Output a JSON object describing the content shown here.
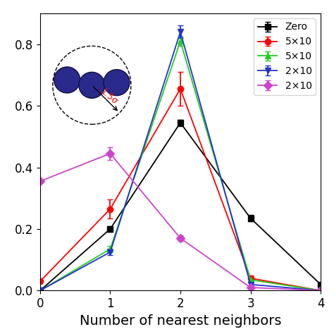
{
  "chart_data": {
    "type": "line",
    "x_label": "Number of nearest neighbors",
    "annotation": "1.5σ",
    "x": [
      0,
      1,
      2,
      3,
      4
    ],
    "xlim": [
      0,
      4
    ],
    "xticks": [
      0,
      1,
      2,
      3,
      4
    ],
    "ylim": [
      0,
      0.9
    ],
    "yticks": [
      0.0,
      0.2,
      0.4,
      0.6,
      0.8
    ],
    "legend": "upper right",
    "series": [
      {
        "name": "Zero",
        "color": "#000000",
        "marker": "square",
        "line_style": "solid",
        "values": [
          0.0,
          0.2,
          0.545,
          0.235,
          0.02
        ],
        "errors": [
          0.0,
          0.01,
          0.01,
          0.01,
          0.0
        ]
      },
      {
        "name": "5×10",
        "color": "#ff0000",
        "marker": "circle",
        "line_style": "solid",
        "values": [
          0.03,
          0.265,
          0.655,
          0.04,
          0.0
        ],
        "errors": [
          0.0,
          0.03,
          0.055,
          0.01,
          0.0
        ]
      },
      {
        "name": "5×10",
        "color": "#22cc22",
        "marker": "triangle_up",
        "line_style": "solid",
        "values": [
          0.0,
          0.135,
          0.81,
          0.035,
          0.0
        ],
        "errors": [
          0.0,
          0.01,
          0.015,
          0.01,
          0.0
        ]
      },
      {
        "name": "2×10",
        "color": "#2233cc",
        "marker": "triangle_down",
        "line_style": "solid",
        "values": [
          0.0,
          0.125,
          0.84,
          0.02,
          0.0
        ],
        "errors": [
          0.0,
          0.01,
          0.02,
          0.01,
          0.0
        ]
      },
      {
        "name": "2×10",
        "color": "#cc44cc",
        "marker": "diamond",
        "line_style": "solid",
        "values": [
          0.355,
          0.445,
          0.17,
          0.01,
          0.0
        ],
        "errors": [
          0.0,
          0.02,
          0.01,
          0.0,
          0.0
        ]
      }
    ]
  }
}
